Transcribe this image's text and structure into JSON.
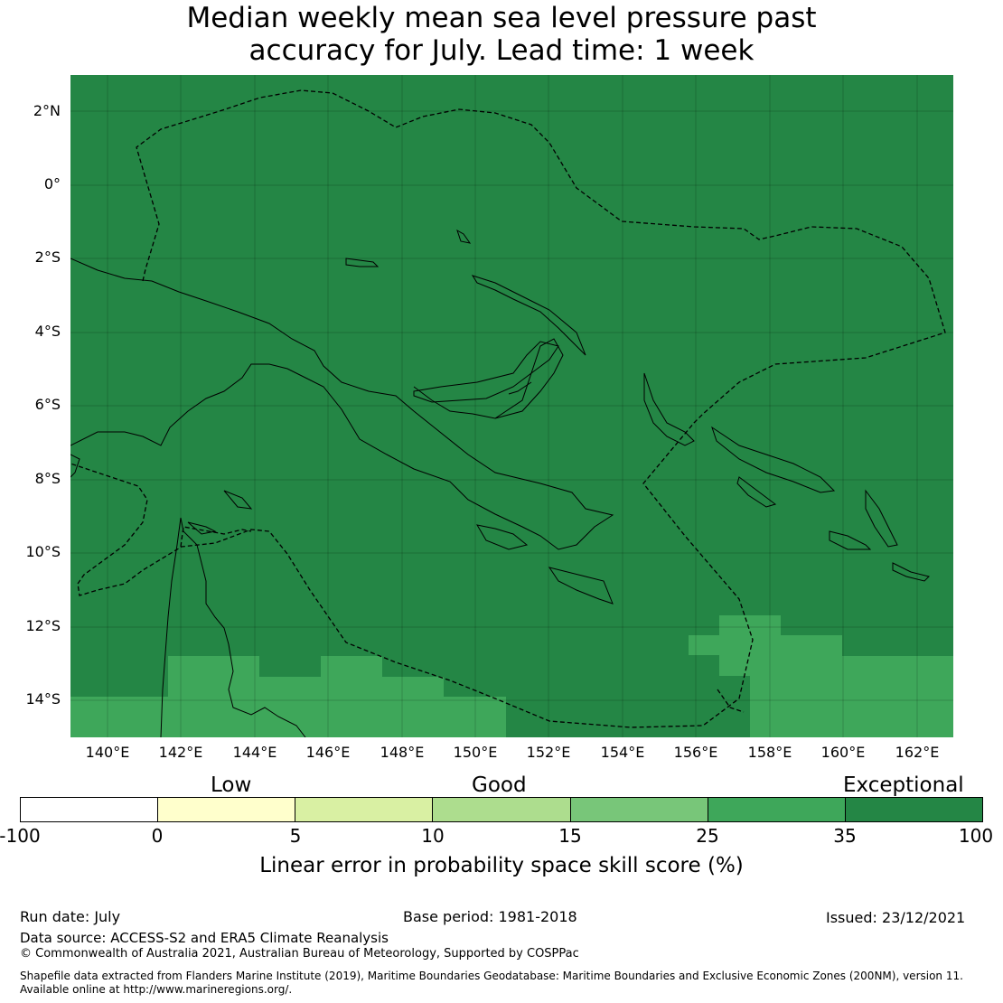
{
  "title_line1": "Median weekly mean sea level pressure past",
  "title_line2": "accuracy for July. Lead time: 1 week",
  "map": {
    "lat_labels": [
      "2°N",
      "0°",
      "2°S",
      "4°S",
      "6°S",
      "8°S",
      "10°S",
      "12°S",
      "14°S"
    ],
    "lon_labels": [
      "140°E",
      "142°E",
      "144°E",
      "146°E",
      "148°E",
      "150°E",
      "152°E",
      "154°E",
      "156°E",
      "158°E",
      "160°E",
      "162°E"
    ],
    "lat_range": [
      -15,
      3
    ],
    "lon_range": [
      139,
      163
    ],
    "background_color": "#248645",
    "cell_color_25_35": "#3ea75a",
    "coastline_color": "#000000",
    "eez_boundary_style": "dashed"
  },
  "colorbar": {
    "category_labels": [
      "Low",
      "Good",
      "Exceptional"
    ],
    "tick_labels": [
      "-100",
      "0",
      "5",
      "10",
      "15",
      "25",
      "35",
      "100"
    ],
    "segment_colors": [
      "#ffffff",
      "#ffffcc",
      "#d9f0a3",
      "#addd8e",
      "#78c679",
      "#3ea75a",
      "#248645"
    ],
    "label": "Linear error in probability space skill score (%)"
  },
  "footer": {
    "run_date": "Run date: July",
    "base_period": "Base period: 1981-2018",
    "issued": "Issued: 23/12/2021",
    "data_source": "Data source: ACCESS-S2 and ERA5 Climate Reanalysis",
    "copyright": "© Commonwealth of Australia 2021, Australian Bureau of Meteorology, Supported by COSPPac",
    "shapefile_line1": "Shapefile data extracted from Flanders Marine Institute (2019), Maritime Boundaries Geodatabase: Maritime Boundaries and Exclusive Economic Zones (200NM), version 11.",
    "shapefile_line2": "Available online at http://www.marineregions.org/."
  }
}
